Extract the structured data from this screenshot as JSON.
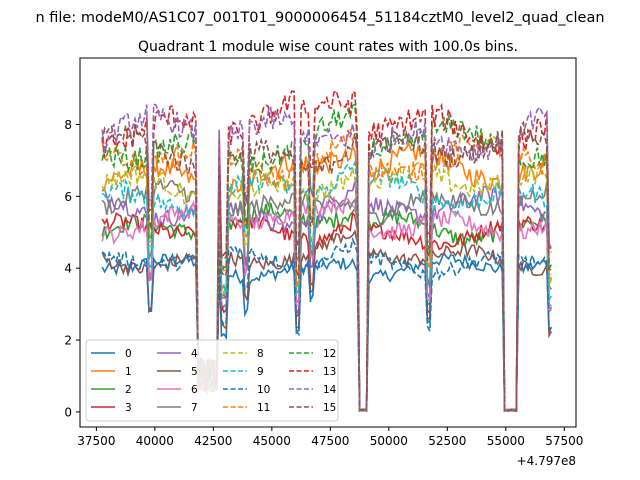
{
  "chart_data": {
    "type": "line",
    "suptitle": "n file: modeM0/AS1C07_001T01_9000006454_51184cztM0_level2_quad_clean",
    "title": "Quadrant 1 module wise count rates with 100.0s bins.",
    "xlabel": "",
    "ylabel": "",
    "x_offset_label": "+4.797e8",
    "xlim": [
      36800,
      58000
    ],
    "ylim": [
      -0.42,
      9.85
    ],
    "x_ticks": [
      37500,
      40000,
      42500,
      45000,
      47500,
      50000,
      52500,
      55000,
      57500
    ],
    "x_tick_labels": [
      "37500",
      "40000",
      "42500",
      "45000",
      "47500",
      "50000",
      "52500",
      "55000",
      "57500"
    ],
    "y_ticks": [
      0,
      2,
      4,
      6,
      8
    ],
    "y_tick_labels": [
      "0",
      "2",
      "4",
      "6",
      "8"
    ],
    "x_start": 37750,
    "x_end": 57000,
    "bin": 100,
    "gaps": [
      {
        "start": 41850,
        "end": 42650,
        "level": 1.0
      },
      {
        "start": 48700,
        "end": 49100,
        "level": 0.05
      },
      {
        "start": 54900,
        "end": 55450,
        "level": 0.05
      }
    ],
    "dips": [
      {
        "x": 39800,
        "frac": 0.7
      },
      {
        "x": 42950,
        "frac": 0.55
      },
      {
        "x": 43900,
        "frac": 0.75
      },
      {
        "x": 46100,
        "frac": 0.55
      },
      {
        "x": 46700,
        "frac": 0.78
      },
      {
        "x": 51700,
        "frac": 0.6
      },
      {
        "x": 56900,
        "frac": 0.55
      }
    ],
    "legend": {
      "placement": "lower-left",
      "columns": 4
    },
    "series": [
      {
        "name": "0",
        "color": "#1f77b4",
        "dash": false,
        "base": 4.0
      },
      {
        "name": "1",
        "color": "#ff7f0e",
        "dash": false,
        "base": 6.7
      },
      {
        "name": "2",
        "color": "#2ca02c",
        "dash": false,
        "base": 5.2
      },
      {
        "name": "3",
        "color": "#d62728",
        "dash": false,
        "base": 5.0
      },
      {
        "name": "4",
        "color": "#9467bd",
        "dash": false,
        "base": 5.6
      },
      {
        "name": "5",
        "color": "#8c564b",
        "dash": false,
        "base": 4.3
      },
      {
        "name": "6",
        "color": "#e377c2",
        "dash": false,
        "base": 5.3
      },
      {
        "name": "7",
        "color": "#7f7f7f",
        "dash": false,
        "base": 5.8
      },
      {
        "name": "8",
        "color": "#bcbd22",
        "dash": true,
        "base": 6.3
      },
      {
        "name": "9",
        "color": "#17becf",
        "dash": true,
        "base": 6.1
      },
      {
        "name": "10",
        "color": "#1f77b4",
        "dash": true,
        "base": 4.2
      },
      {
        "name": "11",
        "color": "#ff7f0e",
        "dash": true,
        "base": 7.0
      },
      {
        "name": "12",
        "color": "#2ca02c",
        "dash": true,
        "base": 7.4
      },
      {
        "name": "13",
        "color": "#d62728",
        "dash": true,
        "base": 8.0
      },
      {
        "name": "14",
        "color": "#9467bd",
        "dash": true,
        "base": 7.7
      },
      {
        "name": "15",
        "color": "#8c564b",
        "dash": true,
        "base": 7.2
      }
    ]
  }
}
